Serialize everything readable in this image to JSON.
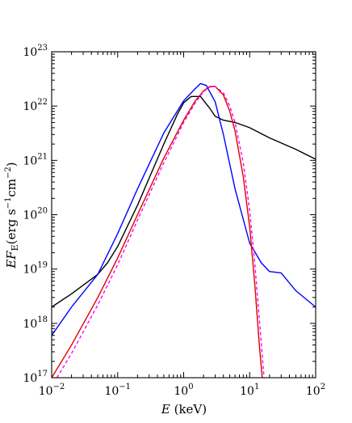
{
  "chart_data": {
    "type": "line",
    "title": "",
    "xlabel": {
      "var": "E",
      "unit": " (keV)"
    },
    "ylabel": {
      "var": "EF",
      "sub": "E",
      "unit": "(erg s",
      "u1": "−1",
      "u2": "cm",
      "u3": "−2",
      "close": ")"
    },
    "xscale": "log",
    "yscale": "log",
    "xlim": [
      0.01,
      100
    ],
    "ylim": [
      1e+17,
      1e+23
    ],
    "x_ticks": [
      {
        "base": "10",
        "exp": "−2"
      },
      {
        "base": "10",
        "exp": "−1"
      },
      {
        "base": "10",
        "exp": "0"
      },
      {
        "base": "10",
        "exp": "1"
      },
      {
        "base": "10",
        "exp": "2"
      }
    ],
    "y_ticks": [
      {
        "base": "10",
        "exp": "17"
      },
      {
        "base": "10",
        "exp": "18"
      },
      {
        "base": "10",
        "exp": "19"
      },
      {
        "base": "10",
        "exp": "20"
      },
      {
        "base": "10",
        "exp": "21"
      },
      {
        "base": "10",
        "exp": "22"
      },
      {
        "base": "10",
        "exp": "23"
      }
    ],
    "grid": false,
    "series": [
      {
        "color": "#000000",
        "style": "solid",
        "points": [
          [
            0.01,
            2e+18
          ],
          [
            0.02,
            3.5e+18
          ],
          [
            0.05,
            8e+18
          ],
          [
            0.07,
            1.3e+19
          ],
          [
            0.1,
            2.6e+19
          ],
          [
            0.2,
            1.5e+20
          ],
          [
            0.5,
            2e+21
          ],
          [
            0.8,
            7e+21
          ],
          [
            1.0,
            1.15e+22
          ],
          [
            1.3,
            1.5e+22
          ],
          [
            1.8,
            1.5e+22
          ],
          [
            2.5,
            9e+21
          ],
          [
            3.0,
            6.5e+21
          ],
          [
            4.0,
            5.5e+21
          ],
          [
            6.0,
            5e+21
          ],
          [
            10,
            4e+21
          ],
          [
            20,
            2.6e+21
          ],
          [
            50,
            1.6e+21
          ],
          [
            100,
            1.05e+21
          ]
        ]
      },
      {
        "color": "#0000ff",
        "style": "solid",
        "points": [
          [
            0.01,
            6e+17
          ],
          [
            0.02,
            2e+18
          ],
          [
            0.05,
            8e+18
          ],
          [
            0.1,
            4.5e+19
          ],
          [
            0.2,
            3e+20
          ],
          [
            0.5,
            3.2e+21
          ],
          [
            1.0,
            1.25e+22
          ],
          [
            1.5,
            2.1e+22
          ],
          [
            1.8,
            2.6e+22
          ],
          [
            2.2,
            2.4e+22
          ],
          [
            3.0,
            1.2e+22
          ],
          [
            4.0,
            3e+21
          ],
          [
            6.0,
            3e+20
          ],
          [
            10,
            3e+19
          ],
          [
            15,
            1.3e+19
          ],
          [
            20,
            9e+18
          ],
          [
            30,
            8.5e+18
          ],
          [
            50,
            4e+18
          ],
          [
            80,
            2.5e+18
          ],
          [
            100,
            2e+18
          ]
        ]
      },
      {
        "color": "#dd0000",
        "style": "solid",
        "points": [
          [
            0.01,
            1e+17
          ],
          [
            0.02,
            4e+17
          ],
          [
            0.05,
            3e+18
          ],
          [
            0.1,
            1.6e+19
          ],
          [
            0.2,
            1e+20
          ],
          [
            0.5,
            1.1e+21
          ],
          [
            1.0,
            5.5e+21
          ],
          [
            1.5,
            1.25e+22
          ],
          [
            2.0,
            1.9e+22
          ],
          [
            2.5,
            2.3e+22
          ],
          [
            3.0,
            2.3e+22
          ],
          [
            4.0,
            1.6e+22
          ],
          [
            5.0,
            8e+21
          ],
          [
            6.0,
            3.5e+21
          ],
          [
            8.0,
            5e+20
          ],
          [
            10,
            6e+19
          ],
          [
            12,
            5e+18
          ],
          [
            14,
            4e+17
          ],
          [
            15.5,
            1e+17
          ]
        ]
      },
      {
        "color": "#ff00ff",
        "style": "dashed",
        "points": [
          [
            0.012,
            1e+17
          ],
          [
            0.02,
            2.8e+17
          ],
          [
            0.05,
            2.2e+18
          ],
          [
            0.1,
            1.2e+19
          ],
          [
            0.2,
            8e+19
          ],
          [
            0.5,
            9e+20
          ],
          [
            1.0,
            5e+21
          ],
          [
            1.5,
            1.15e+22
          ],
          [
            2.0,
            1.85e+22
          ],
          [
            2.5,
            2.25e+22
          ],
          [
            3.0,
            2.3e+22
          ],
          [
            4.0,
            1.75e+22
          ],
          [
            5.0,
            1e+22
          ],
          [
            6.0,
            5e+21
          ],
          [
            8.0,
            9e+20
          ],
          [
            10,
            1.2e+20
          ],
          [
            12,
            1.2e+19
          ],
          [
            14,
            1.2e+18
          ],
          [
            16.5,
            1e+17
          ]
        ]
      }
    ]
  }
}
